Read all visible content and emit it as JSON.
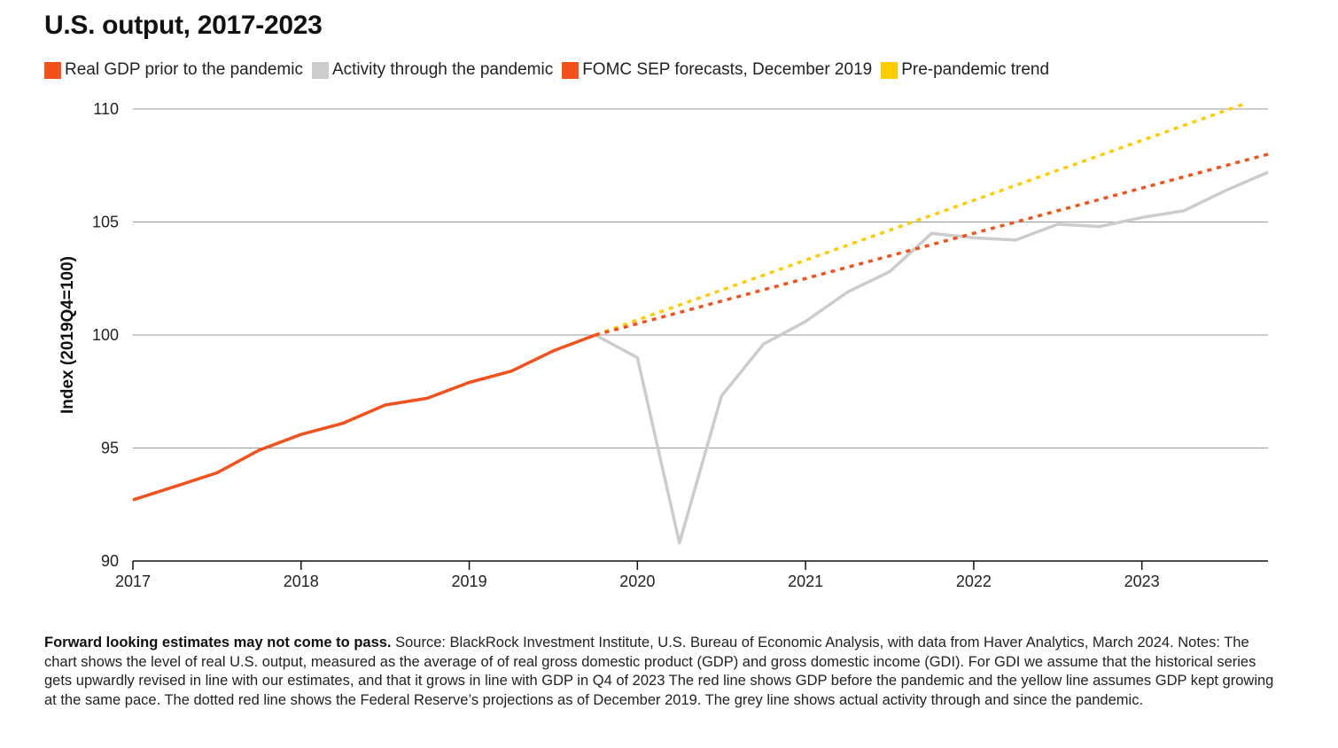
{
  "chart_data": {
    "type": "line",
    "title": "U.S. output, 2017-2023",
    "xlabel": "",
    "ylabel": "Index (2019Q4=100)",
    "xlim": [
      2017.0,
      2023.75
    ],
    "ylim": [
      90,
      110
    ],
    "y_ticks": [
      90,
      95,
      100,
      105,
      110
    ],
    "x_ticks": [
      2017,
      2018,
      2019,
      2020,
      2021,
      2022,
      2023
    ],
    "x_tick_labels": [
      "2017",
      "2018",
      "2019",
      "2020",
      "2021",
      "2022",
      "2023"
    ],
    "grid": "horizontal",
    "legend_position": "top-left",
    "series": [
      {
        "name": "Real GDP prior to the pandemic",
        "color": "#f2511b",
        "style": "solid",
        "x": [
          2017.0,
          2017.25,
          2017.5,
          2017.75,
          2018.0,
          2018.25,
          2018.5,
          2018.75,
          2019.0,
          2019.25,
          2019.5,
          2019.75
        ],
        "y": [
          92.7,
          93.3,
          93.9,
          94.9,
          95.6,
          96.1,
          96.9,
          97.2,
          97.9,
          98.4,
          99.3,
          100.0
        ]
      },
      {
        "name": "Activity through the pandemic",
        "color": "#cccccc",
        "style": "solid",
        "x": [
          2019.75,
          2020.0,
          2020.25,
          2020.5,
          2020.75,
          2021.0,
          2021.25,
          2021.5,
          2021.75,
          2022.0,
          2022.25,
          2022.5,
          2022.75,
          2023.0,
          2023.25,
          2023.5,
          2023.75
        ],
        "y": [
          100.0,
          99.0,
          90.8,
          97.3,
          99.6,
          100.6,
          101.9,
          102.8,
          104.5,
          104.3,
          104.2,
          104.9,
          104.8,
          105.2,
          105.5,
          106.4,
          107.2
        ]
      },
      {
        "name": "FOMC SEP forecasts, December 2019",
        "color": "#f2511b",
        "style": "dotted",
        "x": [
          2019.75,
          2023.75
        ],
        "y": [
          100.0,
          108.0
        ]
      },
      {
        "name": "Pre-pandemic trend",
        "color": "#ffcc00",
        "style": "dotted",
        "x": [
          2019.75,
          2023.6
        ],
        "y": [
          100.0,
          110.2
        ]
      }
    ]
  },
  "footnote": {
    "bold": "Forward looking estimates may not come to pass.",
    "text": " Source: BlackRock Investment Institute, U.S. Bureau of Economic Analysis, with data from Haver Analytics, March 2024. Notes: The chart shows the level of real U.S. output, measured as the average of of real gross domestic product (GDP) and gross domestic income (GDI). For GDI we assume that the historical series gets upwardly revised in line with our estimates, and that it grows in line with GDP in Q4 of 2023 The red line shows GDP before the pandemic and the yellow line assumes GDP kept growing at the same pace. The dotted red line shows the Federal Reserve’s projections as of December 2019. The grey line shows actual activity through and since the pandemic."
  }
}
